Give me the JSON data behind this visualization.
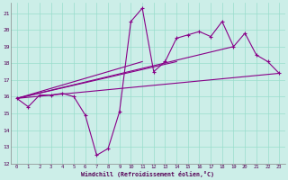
{
  "xlabel": "Windchill (Refroidissement éolien,°C)",
  "bg_color": "#cceee8",
  "grid_color": "#99ddcc",
  "line_color": "#880088",
  "xlim": [
    -0.5,
    23.5
  ],
  "ylim": [
    12,
    21.6
  ],
  "yticks": [
    12,
    13,
    14,
    15,
    16,
    17,
    18,
    19,
    20,
    21
  ],
  "xticks": [
    0,
    1,
    2,
    3,
    4,
    5,
    6,
    7,
    8,
    9,
    10,
    11,
    12,
    13,
    14,
    15,
    16,
    17,
    18,
    19,
    20,
    21,
    22,
    23
  ],
  "series1_x": [
    0,
    1,
    2,
    3,
    4,
    5,
    6,
    7,
    8,
    9,
    10,
    11,
    12,
    13,
    14,
    15,
    16,
    17,
    18,
    19,
    20,
    21,
    22,
    23
  ],
  "series1_y": [
    15.9,
    15.4,
    16.1,
    16.1,
    16.2,
    16.0,
    14.9,
    12.5,
    12.9,
    15.1,
    20.5,
    21.3,
    17.5,
    18.1,
    19.5,
    19.7,
    19.9,
    19.6,
    20.5,
    19.0,
    19.8,
    18.5,
    18.1,
    17.4
  ],
  "line2_x": [
    0,
    23
  ],
  "line2_y": [
    15.9,
    17.4
  ],
  "line3_x": [
    0,
    19
  ],
  "line3_y": [
    15.9,
    19.0
  ],
  "line4_x": [
    0,
    14
  ],
  "line4_y": [
    15.9,
    18.1
  ],
  "line5_x": [
    0,
    11
  ],
  "line5_y": [
    15.9,
    18.1
  ]
}
